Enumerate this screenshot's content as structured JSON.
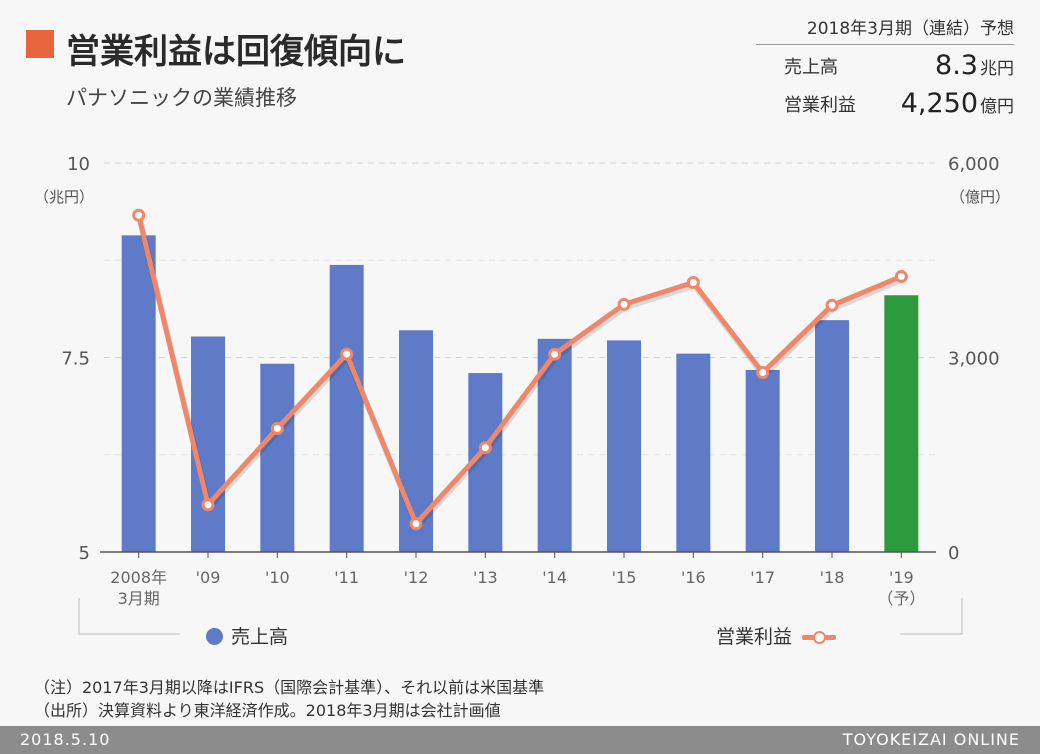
{
  "title": "営業利益は回復傾向に",
  "subtitle": "パナソニックの業績推移",
  "forecast": {
    "heading": "2018年3月期（連結）予想",
    "rows": [
      {
        "label": "売上高",
        "value": "8.3",
        "unit": "兆円"
      },
      {
        "label": "営業利益",
        "value": "4,250",
        "unit": "億円"
      }
    ]
  },
  "chart_data": {
    "type": "bar",
    "categories": [
      "2008年\n3月期",
      "'09",
      "'10",
      "'11",
      "'12",
      "'13",
      "'14",
      "'15",
      "'16",
      "'17",
      "'18",
      "'19\n（予）"
    ],
    "series": [
      {
        "name": "売上高",
        "type": "bar",
        "axis": "left",
        "values": [
          9.07,
          7.77,
          7.42,
          8.69,
          7.85,
          7.3,
          7.74,
          7.72,
          7.55,
          7.34,
          7.98,
          8.3
        ],
        "color": "#5f7bc7",
        "highlight_last_color": "#2e9a3e"
      },
      {
        "name": "営業利益",
        "type": "line",
        "axis": "right",
        "values": [
          5195,
          729,
          1905,
          3053,
          437,
          1609,
          3051,
          3819,
          4157,
          2768,
          3805,
          4250
        ],
        "color": "#f0876a"
      }
    ],
    "y_left": {
      "min": 5,
      "max": 10,
      "ticks": [
        "5",
        "7.5",
        "10"
      ],
      "unit": "（兆円）"
    },
    "y_right": {
      "min": 0,
      "max": 6000,
      "ticks": [
        "0",
        "3,000",
        "6,000"
      ],
      "unit": "（億円）"
    },
    "grid": "dashed-horizontal",
    "legend": "bottom"
  },
  "notes": [
    "（注）2017年3月期以降はIFRS（国際会計基準）、それ以前は米国基準",
    "（出所）決算資料より東洋経済作成。2018年3月期は会社計画値"
  ],
  "footer": {
    "date": "2018.5.10",
    "brand": "TOYOKEIZAI ONLINE"
  }
}
